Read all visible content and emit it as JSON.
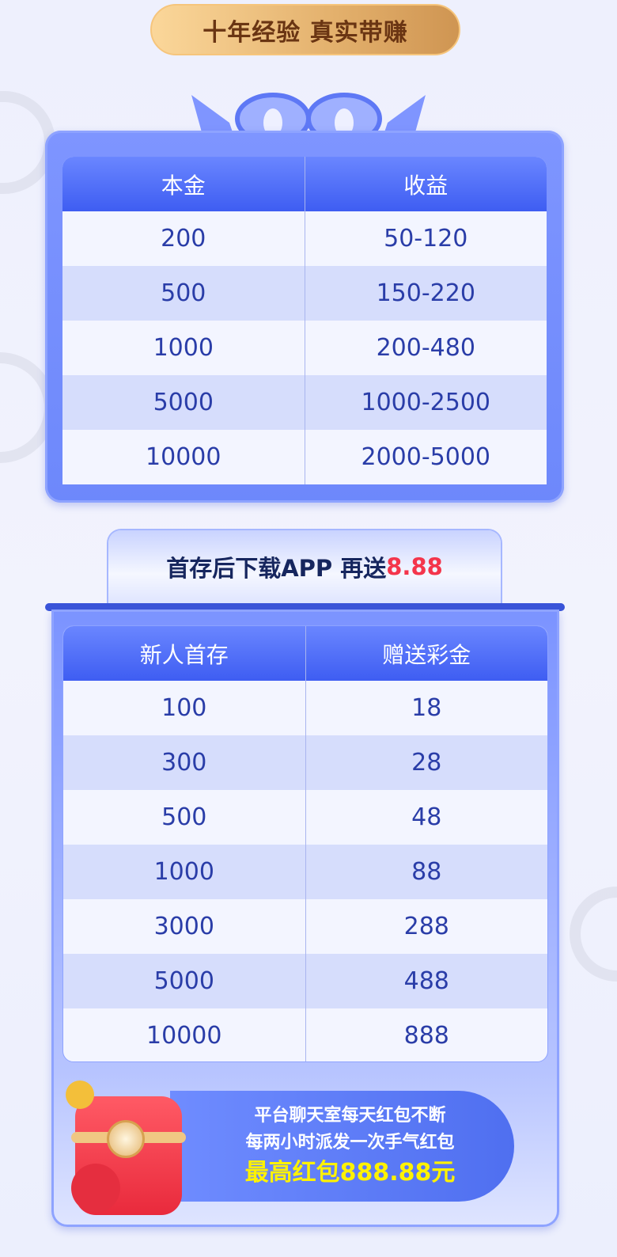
{
  "banner": {
    "title": "十年经验 真实带赚"
  },
  "table1": {
    "headers": [
      "本金",
      "收益"
    ],
    "rows": [
      [
        "200",
        "50-120"
      ],
      [
        "500",
        "150-220"
      ],
      [
        "1000",
        "200-480"
      ],
      [
        "5000",
        "1000-2500"
      ],
      [
        "10000",
        "2000-5000"
      ]
    ]
  },
  "tab": {
    "text": "首存后下载APP 再送",
    "highlight": "8.88"
  },
  "table2": {
    "headers": [
      "新人首存",
      "赠送彩金"
    ],
    "rows": [
      [
        "100",
        "18"
      ],
      [
        "300",
        "28"
      ],
      [
        "500",
        "48"
      ],
      [
        "1000",
        "88"
      ],
      [
        "3000",
        "288"
      ],
      [
        "5000",
        "488"
      ],
      [
        "10000",
        "888"
      ]
    ]
  },
  "promo": {
    "line1": "平台聊天室每天红包不断",
    "line2": "每两小时派发一次手气红包",
    "line3": "最高红包888.88元"
  },
  "colors": {
    "accent": "#3e5df2",
    "highlight_red": "#f4354b",
    "promo_yellow": "#fff200"
  }
}
